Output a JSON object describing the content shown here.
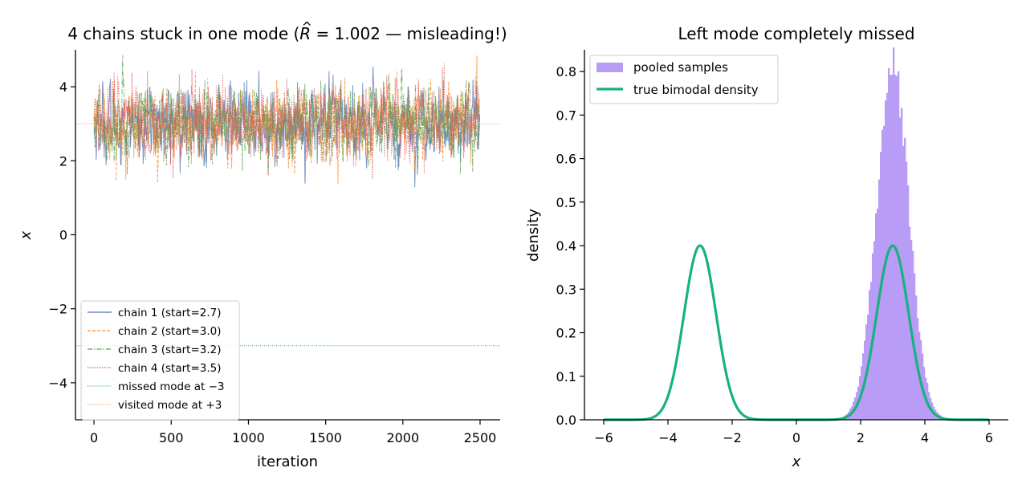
{
  "chart_data": [
    {
      "type": "line",
      "title": "4 chains stuck in one mode (R̂ = 1.002 — misleading!)",
      "title_parts": {
        "before": "4 chains stuck in one mode (",
        "rhat_symbol": "R",
        "rhat_hat": "^",
        "rhat_rest": " = 1.002 — misleading!)"
      },
      "xlabel": "iteration",
      "ylabel": "x",
      "xlim": [
        -120,
        2630
      ],
      "ylim": [
        -5,
        5
      ],
      "xticks": [
        0,
        500,
        1000,
        1500,
        2000,
        2500
      ],
      "yticks": [
        4,
        2,
        0,
        -2,
        -4
      ],
      "ytick_labels": [
        "4",
        "2",
        "0",
        "−2",
        "−4"
      ],
      "iterations": 2500,
      "series": [
        {
          "name": "chain 1 (start=2.7)",
          "start": 2.7,
          "center": 3.0,
          "sd": 0.5,
          "color": "#4c72b0",
          "dash": ""
        },
        {
          "name": "chain 2 (start=3.0)",
          "start": 3.0,
          "center": 3.0,
          "sd": 0.5,
          "color": "#f28e2b",
          "dash": "4 2"
        },
        {
          "name": "chain 3 (start=3.2)",
          "start": 3.2,
          "center": 3.0,
          "sd": 0.5,
          "color": "#59a14f",
          "dash": "6 2 1.5 2"
        },
        {
          "name": "chain 4 (start=3.5)",
          "start": 3.5,
          "center": 3.0,
          "sd": 0.5,
          "color": "#e15759",
          "dash": "1.5 1.5"
        }
      ],
      "reference_lines": [
        {
          "name": "missed mode at −3",
          "y": -3,
          "color": "#17a673"
        },
        {
          "name": "visited mode at +3",
          "y": 3,
          "color": "#f28e2b"
        }
      ],
      "observed_range": [
        1.25,
        4.85
      ],
      "legend_position": "lower-left",
      "grid": false
    },
    {
      "type": "area",
      "title": "Left mode completely missed",
      "xlabel": "x",
      "ylabel": "density",
      "xlim": [
        -6.6,
        6.6
      ],
      "ylim": [
        0,
        0.85
      ],
      "xticks": [
        -6,
        -4,
        -2,
        0,
        2,
        4,
        6
      ],
      "xtick_labels": [
        "−6",
        "−4",
        "−2",
        "0",
        "2",
        "4",
        "6"
      ],
      "yticks": [
        0.0,
        0.1,
        0.2,
        0.3,
        0.4,
        0.5,
        0.6,
        0.7,
        0.8
      ],
      "ytick_labels": [
        "0.0",
        "0.1",
        "0.2",
        "0.3",
        "0.4",
        "0.5",
        "0.6",
        "0.7",
        "0.8"
      ],
      "histogram": {
        "name": "pooled samples",
        "color": "#b89cf6",
        "center": 3.0,
        "sd": 0.5,
        "peak_density": 0.81,
        "bin_width": 0.05,
        "range": [
          1.25,
          4.85
        ]
      },
      "density_curve": {
        "name": "true bimodal density",
        "color": "#17b27f",
        "modes": [
          -3,
          3
        ],
        "sd": 0.5,
        "weights": [
          0.5,
          0.5
        ],
        "x_range": [
          -6,
          6
        ],
        "peak": 0.4
      },
      "legend_position": "upper-left",
      "grid": false
    }
  ]
}
